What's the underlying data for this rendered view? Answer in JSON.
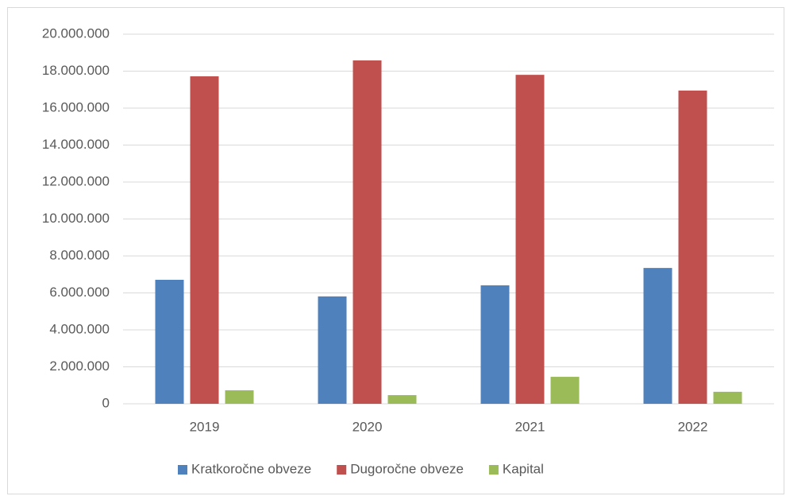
{
  "chart_data": {
    "type": "bar",
    "categories": [
      "2019",
      "2020",
      "2021",
      "2022"
    ],
    "series": [
      {
        "name": "Kratkoročne obveze",
        "color": "#4f81bd",
        "values": [
          6710000,
          5810000,
          6410000,
          7350000
        ]
      },
      {
        "name": "Dugoročne obveze",
        "color": "#c0504d",
        "values": [
          17720000,
          18580000,
          17800000,
          16950000
        ]
      },
      {
        "name": "Kapital",
        "color": "#9bbb59",
        "values": [
          730000,
          470000,
          1460000,
          650000
        ]
      }
    ],
    "ylim": [
      0,
      20000000
    ],
    "yticks": [
      0,
      {
        "value": 2000000,
        "label": "2.000.000"
      },
      {
        "value": 4000000,
        "label": "4.000.000"
      },
      {
        "value": 6000000,
        "label": "6.000.000"
      },
      {
        "value": 8000000,
        "label": "8.000.000"
      },
      {
        "value": 10000000,
        "label": "10.000.000"
      },
      {
        "value": 12000000,
        "label": "12.000.000"
      },
      {
        "value": 14000000,
        "label": "14.000.000"
      },
      {
        "value": 16000000,
        "label": "16.000.000"
      },
      {
        "value": 18000000,
        "label": "18.000.000"
      },
      {
        "value": 20000000,
        "label": "20.000.000"
      }
    ],
    "grid": true,
    "legend": "bottom"
  }
}
